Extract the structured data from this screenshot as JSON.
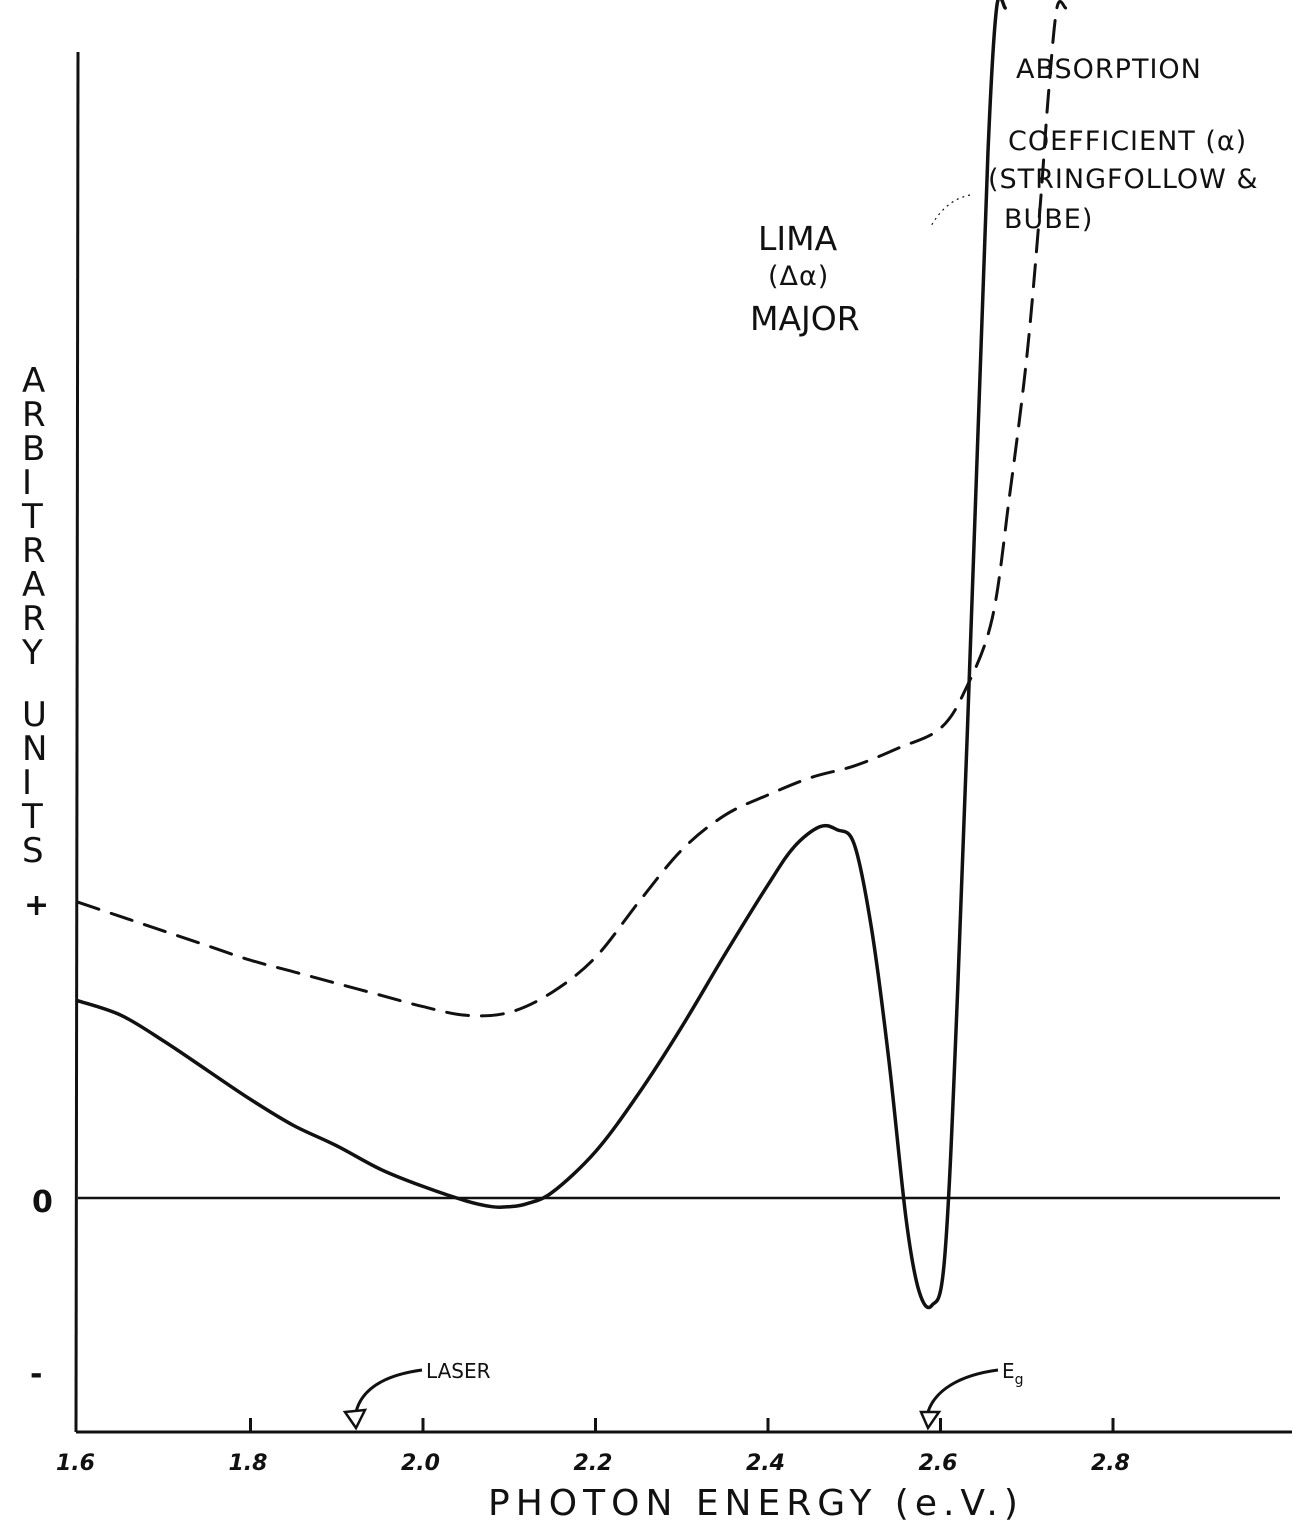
{
  "chart_data": {
    "type": "line",
    "xlabel": "PHOTON ENERGY (e.V.)",
    "ylabel": "ARBITRARY UNITS",
    "y_sign_labels": {
      "plus": "+",
      "zero": "0",
      "minus": "-"
    },
    "xlim": [
      1.6,
      3.2
    ],
    "ylim": [
      -1.0,
      4.5
    ],
    "x_ticks": [
      1.6,
      1.8,
      2.0,
      2.2,
      2.4,
      2.6,
      2.8
    ],
    "x_tick_labels": [
      "1.6",
      "1.8",
      "2.0",
      "2.2",
      "2.4",
      "2.6",
      "2.8"
    ],
    "grid": false,
    "series": [
      {
        "name": "LIMA (Δα) MAJOR",
        "style": "solid",
        "color": "#111111",
        "x": [
          1.6,
          1.65,
          1.7,
          1.75,
          1.8,
          1.85,
          1.9,
          1.95,
          2.0,
          2.05,
          2.08,
          2.1,
          2.12,
          2.15,
          2.2,
          2.25,
          2.3,
          2.35,
          2.4,
          2.43,
          2.46,
          2.48,
          2.5,
          2.52,
          2.54,
          2.56,
          2.575,
          2.59,
          2.605,
          2.62,
          2.64,
          2.655,
          2.665,
          2.675
        ],
        "y": [
          0.68,
          0.63,
          0.54,
          0.44,
          0.34,
          0.25,
          0.18,
          0.1,
          0.04,
          -0.01,
          -0.03,
          -0.03,
          -0.02,
          0.02,
          0.16,
          0.36,
          0.59,
          0.84,
          1.08,
          1.21,
          1.28,
          1.27,
          1.22,
          0.93,
          0.48,
          -0.07,
          -0.32,
          -0.37,
          -0.2,
          0.72,
          2.35,
          3.6,
          4.2,
          4.5
        ]
      },
      {
        "name": "ABSORPTION COEFFICIENT (α) (STRINGFOLLOW & BUBE)",
        "style": "dashed",
        "color": "#111111",
        "x": [
          1.6,
          1.65,
          1.7,
          1.75,
          1.8,
          1.85,
          1.9,
          1.95,
          2.0,
          2.05,
          2.1,
          2.15,
          2.2,
          2.25,
          2.3,
          2.35,
          2.4,
          2.45,
          2.5,
          2.55,
          2.6,
          2.63,
          2.66,
          2.68,
          2.7,
          2.715,
          2.725,
          2.735,
          2.745
        ],
        "y": [
          1.02,
          0.97,
          0.92,
          0.87,
          0.82,
          0.78,
          0.74,
          0.7,
          0.66,
          0.63,
          0.64,
          0.71,
          0.83,
          1.02,
          1.2,
          1.32,
          1.39,
          1.45,
          1.49,
          1.55,
          1.62,
          1.76,
          2.0,
          2.42,
          2.9,
          3.4,
          3.8,
          4.15,
          4.5
        ]
      }
    ],
    "annotations": {
      "lima": {
        "line1": "LIMA",
        "line2": "(Δα)",
        "line3": "MAJOR"
      },
      "absorption": {
        "line1": "ABSORPTION",
        "line2": "COEFFICIENT (α)",
        "line3": "(STRINGFOLLOW &",
        "line4": "BUBE)"
      },
      "laser": {
        "label": "LASER",
        "x": 1.96
      },
      "eg": {
        "label": "E",
        "sub": "g",
        "x": 2.71
      }
    }
  }
}
